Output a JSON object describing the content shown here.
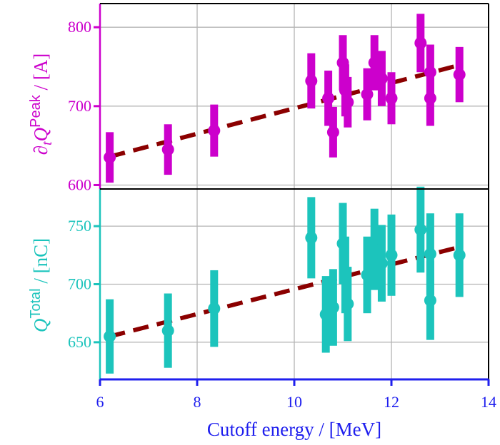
{
  "chart_data": [
    {
      "type": "scatter",
      "panel": "top",
      "ylabel": "∂tQPeak / [A]",
      "ylabel_parts": {
        "partial": "∂",
        "sub": "t",
        "q": "Q",
        "sup": "Peak",
        "unit": " / [A]"
      },
      "ylim": [
        595,
        830
      ],
      "yticks": [
        600,
        700,
        800
      ],
      "color": "#cc00cc",
      "fit_color": "#8b0000",
      "grid": true,
      "x": [
        6.2,
        7.4,
        8.35,
        10.35,
        10.7,
        10.8,
        11.0,
        11.05,
        11.1,
        11.5,
        11.65,
        11.8,
        12.0,
        12.6,
        12.8,
        12.8,
        13.4
      ],
      "y": [
        635,
        645,
        669,
        732,
        710,
        667,
        755,
        720,
        705,
        715,
        755,
        735,
        710,
        780,
        743,
        710,
        740
      ],
      "yerr": [
        32,
        32,
        33,
        35,
        35,
        32,
        35,
        33,
        32,
        33,
        35,
        35,
        33,
        37,
        35,
        35,
        35
      ],
      "fit": {
        "x": [
          6.2,
          13.4
        ],
        "y": [
          636,
          752
        ]
      }
    },
    {
      "type": "scatter",
      "panel": "bottom",
      "xlabel": "Cutoff energy / [MeV]",
      "ylabel": "QTotal / [nC]",
      "ylabel_parts": {
        "q": "Q",
        "sup": "Total",
        "unit": " / [nC]"
      },
      "xlim": [
        6,
        14
      ],
      "xticks": [
        6,
        8,
        10,
        12,
        14
      ],
      "ylim": [
        618,
        782
      ],
      "yticks": [
        650,
        700,
        750
      ],
      "color": "#1cc4bc",
      "fit_color": "#8b0000",
      "grid": true,
      "x": [
        6.2,
        7.4,
        8.35,
        10.35,
        10.65,
        10.8,
        11.0,
        11.05,
        11.1,
        11.5,
        11.65,
        11.8,
        12.0,
        12.6,
        12.8,
        12.8,
        13.4
      ],
      "y": [
        655,
        660,
        679,
        740,
        674,
        680,
        735,
        708,
        683,
        708,
        730,
        718,
        725,
        747,
        726,
        686,
        725
      ],
      "yerr": [
        32,
        32,
        33,
        35,
        33,
        33,
        35,
        33,
        32,
        33,
        35,
        33,
        35,
        37,
        35,
        34,
        36
      ],
      "fit": {
        "x": [
          6.2,
          13.4
        ],
        "y": [
          655,
          732
        ]
      }
    }
  ]
}
